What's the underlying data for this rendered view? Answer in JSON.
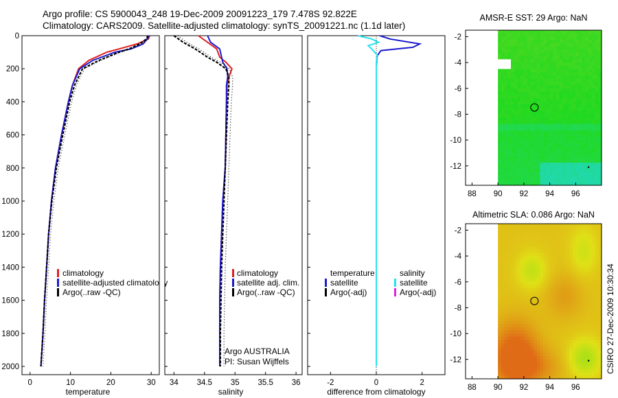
{
  "header": {
    "line1": "Argo profile: CS 5900043_248 19-Dec-2009 20091223_179 7.478S 92.822E",
    "line2": "Climatology: CARS2009. Satellite-adjusted climatology: synTS_20091221.nc (1.1d later)"
  },
  "side_stamp": "CSIRO 27-Dec-2009 10:30:34",
  "colors": {
    "climatology": "#e02020",
    "satellite": "#1a1ad0",
    "argo": "#000000",
    "sat_salinity": "#22e4ee",
    "argo_adj_salinity": "#e020e0"
  },
  "chart_data": [
    {
      "type": "line",
      "id": "temperature",
      "xlabel": "temperature",
      "ylabel": "",
      "xlim": [
        -2,
        32
      ],
      "ylim": [
        2050,
        0
      ],
      "xticks": [
        0,
        10,
        20,
        30
      ],
      "xtick_labels": [
        "0",
        "10",
        "20",
        "30"
      ],
      "yticks": [
        0,
        200,
        400,
        600,
        800,
        1000,
        1200,
        1400,
        1600,
        1800,
        2000
      ],
      "ytick_labels": [
        "0",
        "200",
        "400",
        "600",
        "800",
        "1000",
        "1200",
        "1400",
        "1600",
        "1800",
        "2000"
      ],
      "legend": [
        "climatology",
        "satellite-adjusted climatology",
        "Argo(..raw -QC)"
      ],
      "series": [
        {
          "name": "climatology",
          "depth": [
            0,
            20,
            50,
            80,
            100,
            150,
            200,
            300,
            400,
            600,
            800,
            1000,
            1200,
            1400,
            1600,
            1800,
            2000
          ],
          "values": [
            29.6,
            29.3,
            26.5,
            22,
            19,
            14.5,
            12,
            10.5,
            9.5,
            7.8,
            6.3,
            5.3,
            4.6,
            4.1,
            3.6,
            3.2,
            2.7
          ]
        },
        {
          "name": "satellite-adjusted climatology",
          "depth": [
            0,
            20,
            50,
            80,
            100,
            150,
            200,
            300,
            400,
            600,
            800,
            1000,
            1200,
            1400,
            1600,
            1800,
            2000
          ],
          "values": [
            29.4,
            29,
            28,
            25,
            21,
            15.5,
            12.3,
            10.5,
            9.5,
            7.8,
            6.3,
            5.3,
            4.6,
            4.1,
            3.6,
            3.2,
            2.7
          ]
        },
        {
          "name": "Argo(..raw -QC)",
          "depth": [
            0,
            20,
            50,
            80,
            100,
            150,
            200,
            300,
            400,
            600,
            800,
            1000,
            1200,
            1400,
            1600,
            1800,
            2000
          ],
          "values": [
            29.2,
            28.8,
            27.2,
            24.5,
            22,
            17,
            13,
            11,
            9.8,
            8.1,
            6.5,
            5.4,
            4.6,
            4.1,
            3.6,
            3.2,
            2.7
          ]
        }
      ]
    },
    {
      "type": "line",
      "id": "salinity",
      "xlabel": "salinity",
      "xlim": [
        33.85,
        36.1
      ],
      "ylim": [
        2050,
        0
      ],
      "xticks": [
        34,
        34.5,
        35,
        35.5,
        36
      ],
      "xtick_labels": [
        "34",
        "34.5",
        "35",
        "35.5",
        "36"
      ],
      "legend": [
        "climatology",
        "satellite adj. clim.",
        "Argo(..raw -QC)"
      ],
      "annotation": [
        "Argo AUSTRALIA",
        "PI: Susan Wijffels"
      ],
      "series": [
        {
          "name": "climatology",
          "depth": [
            0,
            40,
            80,
            130,
            160,
            200,
            250,
            300,
            400,
            600,
            800,
            1000,
            1200,
            1400,
            1600,
            1800,
            2000
          ],
          "values": [
            34.4,
            34.55,
            34.7,
            34.75,
            34.85,
            34.95,
            34.9,
            34.87,
            34.86,
            34.85,
            34.84,
            34.8,
            34.78,
            34.76,
            34.75,
            34.75,
            34.75
          ]
        },
        {
          "name": "satellite adj. clim.",
          "depth": [
            0,
            40,
            80,
            130,
            160,
            200,
            250,
            300,
            400,
            600,
            800,
            1000,
            1200,
            1400,
            1600,
            1800,
            2000
          ],
          "values": [
            34.55,
            34.6,
            34.75,
            34.78,
            34.8,
            34.87,
            34.88,
            34.86,
            34.86,
            34.85,
            34.84,
            34.8,
            34.78,
            34.76,
            34.75,
            34.75,
            34.75
          ]
        },
        {
          "name": "Argo(..raw -QC)",
          "depth": [
            0,
            40,
            80,
            130,
            160,
            200,
            250,
            300,
            400,
            600,
            800,
            1000,
            1200,
            1400,
            1600,
            1800,
            2000
          ],
          "values": [
            34.0,
            34.15,
            34.35,
            34.55,
            34.7,
            34.85,
            34.9,
            34.9,
            34.88,
            34.86,
            34.84,
            34.82,
            34.8,
            34.78,
            34.77,
            34.76,
            34.76
          ]
        }
      ]
    },
    {
      "type": "line",
      "id": "difference",
      "xlabel": "difference from climatology",
      "xlim": [
        -3,
        3
      ],
      "ylim": [
        2050,
        0
      ],
      "xticks": [
        -2,
        0,
        2
      ],
      "xtick_labels": [
        "-2",
        "0",
        "2"
      ],
      "legend_groups": [
        "temperature",
        "salinity"
      ],
      "legend": [
        "satellite",
        "Argo(-adj)",
        "satellite",
        "Argo(-adj)"
      ],
      "series": [
        {
          "name": "temperature satellite",
          "depth": [
            0,
            20,
            50,
            70,
            90,
            120,
            150,
            180,
            200,
            300,
            600,
            1000,
            1400,
            2000
          ],
          "values": [
            0.15,
            0.6,
            1.9,
            1.6,
            0.2,
            0.05,
            0.02,
            0,
            0,
            0,
            0,
            0,
            0,
            0
          ]
        },
        {
          "name": "salinity satellite",
          "depth": [
            0,
            20,
            40,
            60,
            80,
            120,
            160,
            200,
            300,
            600,
            1000,
            1400,
            2000
          ],
          "values": [
            -0.8,
            -0.2,
            0.1,
            -0.35,
            -0.2,
            0.05,
            0,
            0,
            0,
            0,
            0,
            0,
            0
          ]
        }
      ]
    },
    {
      "type": "heatmap",
      "id": "sst-map",
      "title": "AMSR-E SST: 29 Argo: NaN",
      "xlim": [
        87.5,
        98
      ],
      "ylim": [
        -13.5,
        -1.5
      ],
      "xticks": [
        88,
        90,
        92,
        94,
        96
      ],
      "xtick_labels": [
        "88",
        "90",
        "92",
        "94",
        "96"
      ],
      "yticks": [
        -2,
        -4,
        -6,
        -8,
        -10,
        -12
      ],
      "ytick_labels": [
        "-2",
        "-4",
        "-6",
        "-8",
        "-10",
        "-12"
      ],
      "argo_position": [
        92.822,
        -7.478
      ],
      "data_extent": [
        90,
        98
      ]
    },
    {
      "type": "heatmap",
      "id": "sla-map",
      "title": "Altimetric SLA: 0.086 Argo: NaN",
      "xlim": [
        87.5,
        98
      ],
      "ylim": [
        -13.5,
        -1.5
      ],
      "xticks": [
        88,
        90,
        92,
        94,
        96
      ],
      "xtick_labels": [
        "88",
        "90",
        "92",
        "94",
        "96"
      ],
      "yticks": [
        -2,
        -4,
        -6,
        -8,
        -10,
        -12
      ],
      "ytick_labels": [
        "-2",
        "-4",
        "-6",
        "-8",
        "-10",
        "-12"
      ],
      "argo_position": [
        92.822,
        -7.478
      ],
      "data_extent": [
        90,
        98
      ]
    }
  ]
}
